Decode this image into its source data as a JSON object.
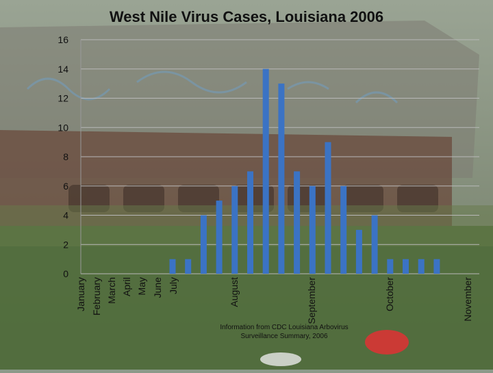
{
  "chart_data": {
    "type": "bar",
    "title": "West Nile Virus Cases, Louisiana 2006",
    "ylim": [
      0,
      16
    ],
    "yticks": [
      0,
      2,
      4,
      6,
      8,
      10,
      12,
      14,
      16
    ],
    "grid": true,
    "color": "#3b73c4",
    "values": [
      1,
      1,
      4,
      5,
      6,
      7,
      14,
      13,
      7,
      6,
      9,
      6,
      3,
      4,
      1,
      1,
      1,
      1
    ],
    "month_labels": [
      "January",
      "February",
      "March",
      "April",
      "May",
      "June",
      "July",
      "August",
      "September",
      "October",
      "November"
    ]
  },
  "footnote": "Information from CDC Louisiana Arbovirus Surveillance Summary, 2006"
}
